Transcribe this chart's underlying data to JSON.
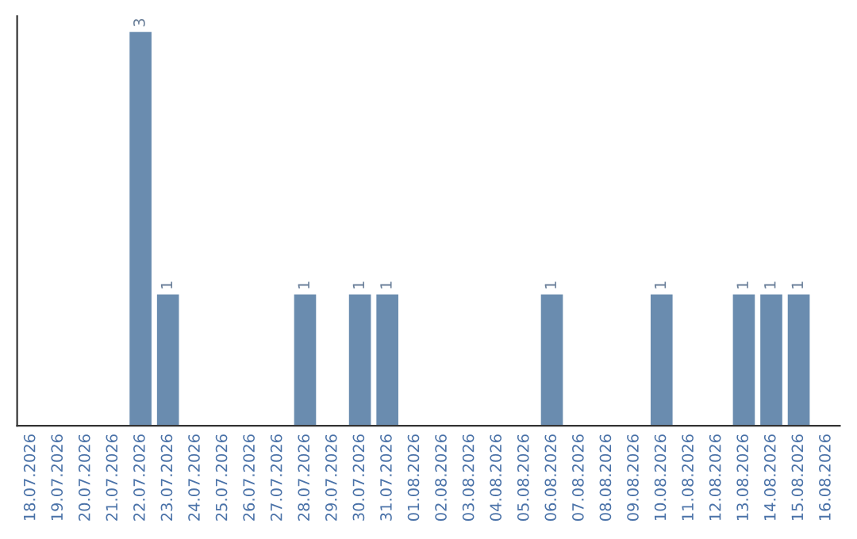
{
  "chart_data": {
    "type": "bar",
    "categories": [
      "18.07.2026",
      "19.07.2026",
      "20.07.2026",
      "21.07.2026",
      "22.07.2026",
      "23.07.2026",
      "24.07.2026",
      "25.07.2026",
      "26.07.2026",
      "27.07.2026",
      "28.07.2026",
      "29.07.2026",
      "30.07.2026",
      "31.07.2026",
      "01.08.2026",
      "02.08.2026",
      "03.08.2026",
      "04.08.2026",
      "05.08.2026",
      "06.08.2026",
      "07.08.2026",
      "08.08.2026",
      "09.08.2026",
      "10.08.2026",
      "11.08.2026",
      "12.08.2026",
      "13.08.2026",
      "14.08.2026",
      "15.08.2026",
      "16.08.2026"
    ],
    "values": [
      0,
      0,
      0,
      0,
      3,
      1,
      0,
      0,
      0,
      0,
      1,
      0,
      1,
      1,
      0,
      0,
      0,
      0,
      0,
      1,
      0,
      0,
      0,
      1,
      0,
      0,
      1,
      1,
      1,
      0
    ],
    "value_labels": [
      null,
      null,
      null,
      null,
      "3",
      "1",
      null,
      null,
      null,
      null,
      "1",
      null,
      "1",
      "1",
      null,
      null,
      null,
      null,
      null,
      "1",
      null,
      null,
      null,
      "1",
      null,
      null,
      "1",
      "1",
      "1",
      null
    ],
    "color": "#6a8caf",
    "tick_labels": "x",
    "grid": false,
    "legend": false
  }
}
